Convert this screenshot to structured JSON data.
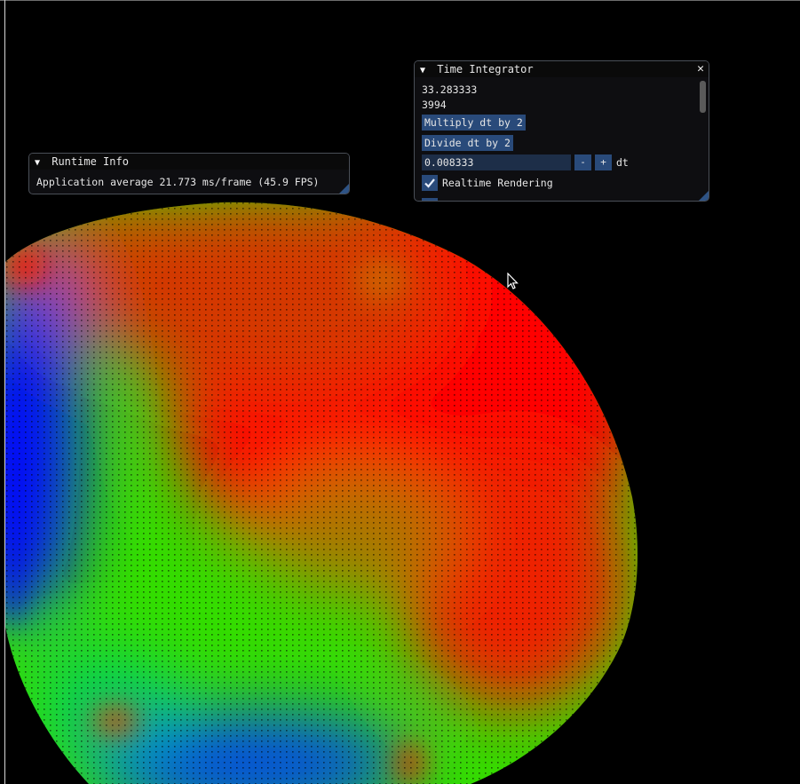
{
  "runtime_info": {
    "title": "Runtime Info",
    "stats": "Application average 21.773 ms/frame (45.9 FPS)"
  },
  "time_integrator": {
    "title": "Time Integrator",
    "close_glyph": "✕",
    "time_value": "33.283333",
    "step_count": "3994",
    "multiply_label": "Multiply dt by 2",
    "divide_label": "Divide dt by 2",
    "dt_value": "0.008333",
    "minus_label": "-",
    "plus_label": "+",
    "dt_label": "dt",
    "realtime_label": "Realtime Rendering",
    "realtime_checked": true
  },
  "icons": {
    "collapse": "collapse-triangle-icon",
    "close": "close-icon",
    "check": "checkmark-icon",
    "cursor": "mouse-pointer-icon"
  },
  "colors": {
    "red": "#ff0000",
    "green": "#00ee00",
    "blue": "#0022ff",
    "button": "#294a7a",
    "input": "#1d2e48"
  }
}
